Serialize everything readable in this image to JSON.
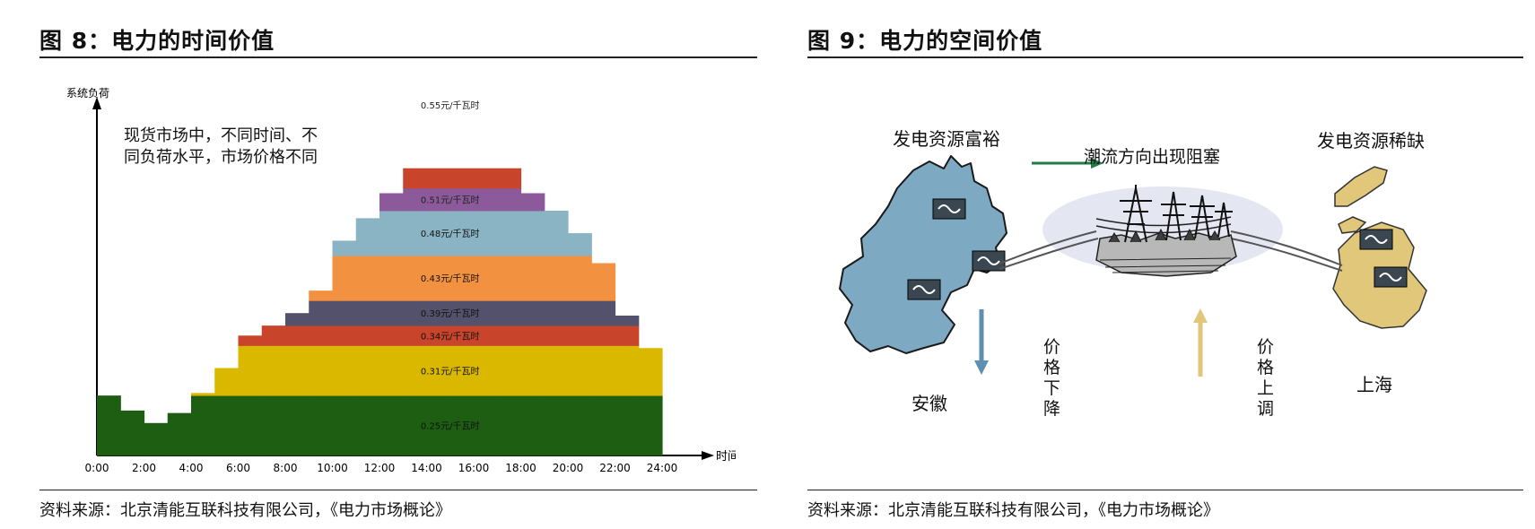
{
  "figure8": {
    "title": "图 8：电力的时间价值",
    "source": "资料来源：北京清能互联科技有限公司，《电力市场概论》",
    "annotation": [
      "现货市场中，不同时间、不",
      "同负荷水平，市场价格不同"
    ],
    "chart_data": {
      "type": "area",
      "ylabel": "系统负荷",
      "xlabel": "时间",
      "x_ticks": [
        "0:00",
        "2:00",
        "4:00",
        "6:00",
        "8:00",
        "10:00",
        "12:00",
        "14:00",
        "16:00",
        "18:00",
        "20:00",
        "22:00",
        "24:00"
      ],
      "price_bands": [
        {
          "label": "0.25元/千瓦时",
          "color": "#1d5e12"
        },
        {
          "label": "0.31元/千瓦时",
          "color": "#dab800"
        },
        {
          "label": "0.34元/千瓦时",
          "color": "#c8442a"
        },
        {
          "label": "0.39元/千瓦时",
          "color": "#54516d"
        },
        {
          "label": "0.43元/千瓦时",
          "color": "#f2913f"
        },
        {
          "label": "0.48元/千瓦时",
          "color": "#8ab4c4"
        },
        {
          "label": "0.51元/千瓦时",
          "color": "#8c5a9a"
        },
        {
          "label": "0.55元/千瓦时",
          "color": "#c8442a"
        }
      ],
      "band_boundaries": [
        0,
        2.4,
        4.4,
        5.2,
        6.2,
        8.0,
        9.8,
        10.7,
        11.5
      ],
      "hourly_load": [
        [
          0,
          1,
          2.4
        ],
        [
          1,
          2,
          1.8
        ],
        [
          2,
          3,
          1.3
        ],
        [
          3,
          4,
          1.7
        ],
        [
          4,
          5,
          2.5
        ],
        [
          5,
          6,
          3.5
        ],
        [
          6,
          7,
          4.8
        ],
        [
          7,
          8,
          5.2
        ],
        [
          8,
          9,
          5.7
        ],
        [
          9,
          10,
          6.6
        ],
        [
          10,
          11,
          8.6
        ],
        [
          11,
          12,
          9.5
        ],
        [
          12,
          13,
          10.5
        ],
        [
          13,
          14,
          12.1
        ],
        [
          14,
          15,
          12.6
        ],
        [
          15,
          16,
          13.2
        ],
        [
          16,
          17,
          12.8
        ],
        [
          17,
          18,
          11.5
        ],
        [
          18,
          19,
          10.5
        ],
        [
          19,
          20,
          9.8
        ],
        [
          20,
          21,
          8.9
        ],
        [
          21,
          22,
          7.7
        ],
        [
          22,
          23,
          5.6
        ],
        [
          23,
          24,
          4.3
        ]
      ],
      "ylim": [
        0,
        14
      ]
    }
  },
  "figure9": {
    "title": "图 9：电力的空间价值",
    "source": "资料来源：北京清能互联科技有限公司，《电力市场概论》",
    "left_heading": "发电资源富裕",
    "left_region": "安徽",
    "left_arrow_label": "价格下降",
    "middle_heading": "潮流方向出现阻塞",
    "right_heading": "发电资源稀缺",
    "right_region": "上海",
    "right_arrow_label": "价格上调",
    "colors": {
      "anhui": "#7ea9c2",
      "shanghai": "#e0c77a",
      "flow_arrow": "#1e7d4a",
      "down_arrow": "#5e8fb0",
      "up_arrow": "#e0c77a"
    }
  }
}
